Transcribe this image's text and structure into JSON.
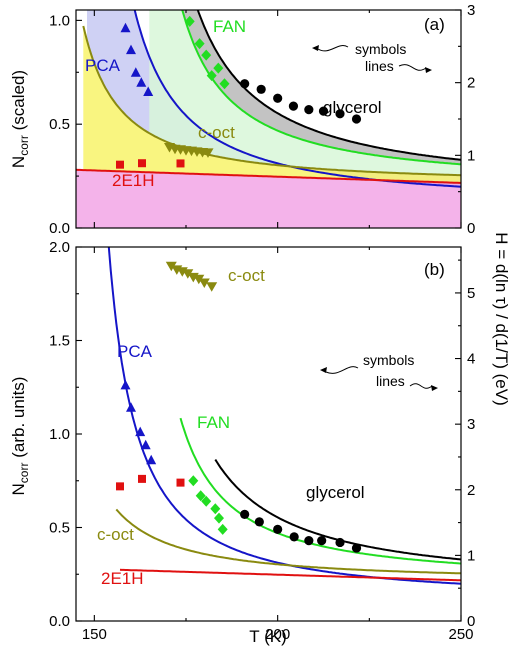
{
  "chart_data": [
    {
      "type": "line",
      "panel_label": "(a)",
      "ylabel_main": "N",
      "ylabel_sub": "corr",
      "ylabel_rest": " (scaled)",
      "xlim": [
        145,
        250
      ],
      "ylim": [
        0,
        1.05
      ],
      "y_ticks": [
        "0.0",
        "0.5",
        "1.0"
      ],
      "y_tick_values": [
        0,
        0.5,
        1.0
      ],
      "right_ylim": [
        0,
        3
      ],
      "right_ticks": [
        "0",
        "1",
        "2",
        "3"
      ],
      "right_tick_values": [
        0,
        1,
        2,
        3
      ],
      "legend": {
        "symbols": "symbols",
        "lines": "lines"
      },
      "labels": {
        "PCA": "PCA",
        "FAN": "FAN",
        "glycerol": "glycerol",
        "coct": "c-oct",
        "e1h": "2E1H"
      },
      "colors": {
        "PCA": "#1515c8",
        "FAN": "#22dd22",
        "glycerol": "#000000",
        "coct": "#8a8a10",
        "e1h": "#e01010"
      },
      "fills": {
        "PCA": "#c7c9f2",
        "FAN": "#d8f7d8",
        "glycerol": "#bdbdbd",
        "coct": "#f8f36a",
        "e1h": "#f2a6e6"
      },
      "series": [
        {
          "name": "PCA",
          "points": [
            [
              158.5,
              0.962
            ],
            [
              160,
              0.857
            ],
            [
              161.3,
              0.748
            ],
            [
              162.8,
              0.7
            ],
            [
              164.7,
              0.655
            ]
          ]
        },
        {
          "name": "FAN",
          "points": [
            [
              176,
              0.995
            ],
            [
              178.7,
              0.888
            ],
            [
              180.5,
              0.833
            ],
            [
              183.8,
              0.77
            ],
            [
              182,
              0.734
            ],
            [
              185.5,
              0.695
            ]
          ]
        },
        {
          "name": "glycerol",
          "points": [
            [
              191,
              0.695
            ],
            [
              195.5,
              0.668
            ],
            [
              200,
              0.625
            ],
            [
              204.3,
              0.587
            ],
            [
              208.5,
              0.57
            ],
            [
              212.5,
              0.563
            ],
            [
              217,
              0.55
            ],
            [
              221.5,
              0.525
            ]
          ]
        },
        {
          "name": "c-oct",
          "points": [
            [
              170.5,
              0.39
            ],
            [
              172,
              0.382
            ],
            [
              173.5,
              0.379
            ],
            [
              175,
              0.375
            ],
            [
              176.5,
              0.373
            ],
            [
              178,
              0.369
            ],
            [
              179.5,
              0.366
            ],
            [
              181,
              0.364
            ]
          ]
        },
        {
          "name": "2E1H",
          "points": [
            [
              157,
              0.305
            ],
            [
              163,
              0.312
            ],
            [
              173.5,
              0.311
            ]
          ]
        }
      ]
    },
    {
      "type": "line",
      "panel_label": "(b)",
      "xlabel": "T (K)",
      "ylabel_main": "N",
      "ylabel_sub": "corr",
      "ylabel_rest": " (arb. units)",
      "xlim": [
        145,
        250
      ],
      "x_ticks": [
        "150",
        "200",
        "250"
      ],
      "x_tick_values": [
        150,
        200,
        250
      ],
      "ylim": [
        0,
        2.0
      ],
      "y_ticks": [
        "0.0",
        "0.5",
        "1.0",
        "1.5",
        "2.0"
      ],
      "y_tick_values": [
        0,
        0.5,
        1.0,
        1.5,
        2.0
      ],
      "right_ylim": [
        0,
        5.7
      ],
      "right_ticks": [
        "0",
        "1",
        "2",
        "3",
        "4",
        "5"
      ],
      "right_tick_values": [
        0,
        1,
        2,
        3,
        4,
        5
      ],
      "legend": {
        "symbols": "symbols",
        "lines": "lines"
      },
      "labels": {
        "PCA": "PCA",
        "FAN": "FAN",
        "glycerol": "glycerol",
        "coct": "c-oct",
        "coct_top": "c-oct",
        "e1h": "2E1H"
      },
      "series": [
        {
          "name": "PCA",
          "points": [
            [
              158.5,
              1.26
            ],
            [
              160,
              1.14
            ],
            [
              162.5,
              1.01
            ],
            [
              164,
              0.94
            ],
            [
              165.5,
              0.86
            ]
          ]
        },
        {
          "name": "FAN",
          "points": [
            [
              177,
              0.75
            ],
            [
              179,
              0.67
            ],
            [
              180.5,
              0.64
            ],
            [
              183,
              0.6
            ],
            [
              184,
              0.55
            ],
            [
              185,
              0.49
            ]
          ]
        },
        {
          "name": "glycerol",
          "points": [
            [
              191,
              0.57
            ],
            [
              195,
              0.53
            ],
            [
              200,
              0.49
            ],
            [
              204.5,
              0.45
            ],
            [
              208.5,
              0.43
            ],
            [
              212,
              0.43
            ],
            [
              217,
              0.42
            ],
            [
              221.5,
              0.39
            ]
          ]
        },
        {
          "name": "c-oct",
          "points": [
            [
              171,
              1.9
            ],
            [
              172.5,
              1.88
            ],
            [
              174,
              1.87
            ],
            [
              175.5,
              1.86
            ],
            [
              177,
              1.84
            ],
            [
              178.5,
              1.83
            ],
            [
              180,
              1.81
            ],
            [
              182,
              1.79
            ]
          ]
        },
        {
          "name": "2E1H",
          "points": [
            [
              157,
              0.72
            ],
            [
              163,
              0.76
            ],
            [
              173.5,
              0.74
            ]
          ]
        }
      ]
    }
  ]
}
